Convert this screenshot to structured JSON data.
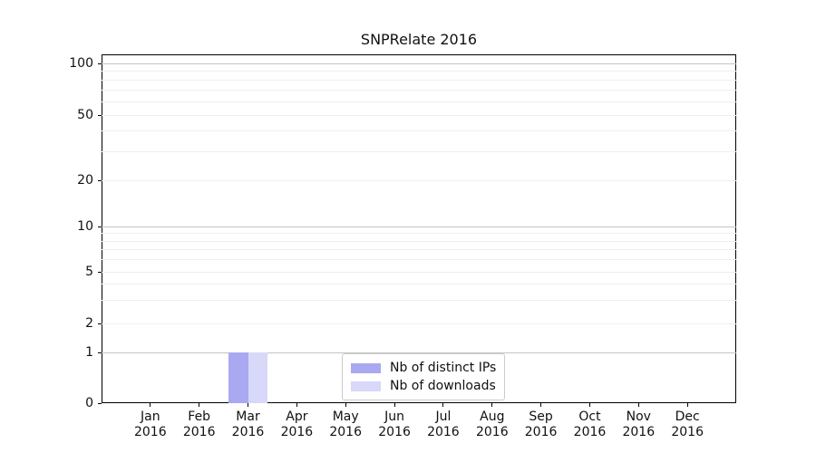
{
  "chart_data": {
    "type": "bar",
    "title": "SNPRelate 2016",
    "x_categories": [
      "Jan",
      "Feb",
      "Mar",
      "Apr",
      "May",
      "Jun",
      "Jul",
      "Aug",
      "Sep",
      "Oct",
      "Nov",
      "Dec"
    ],
    "x_year": "2016",
    "series": [
      {
        "name": "Nb of distinct IPs",
        "color": "#a9a9f1",
        "values": [
          0,
          0,
          1,
          0,
          0,
          0,
          0,
          0,
          0,
          0,
          0,
          0
        ]
      },
      {
        "name": "Nb of downloads",
        "color": "#d8d8f8",
        "values": [
          0,
          0,
          1,
          0,
          0,
          0,
          0,
          0,
          0,
          0,
          0,
          0
        ]
      }
    ],
    "y_ticks": [
      0,
      1,
      2,
      5,
      10,
      20,
      50,
      100
    ],
    "y_major_gridlines": [
      1,
      10,
      100
    ],
    "y_minor_gridlines": [
      2,
      3,
      4,
      5,
      6,
      7,
      8,
      9,
      20,
      30,
      40,
      50,
      60,
      70,
      80,
      90
    ],
    "y_scale_anchors": [
      {
        "v": 0,
        "f": 0.0
      },
      {
        "v": 1,
        "f": 0.1455
      },
      {
        "v": 2,
        "f": 0.2286
      },
      {
        "v": 5,
        "f": 0.3766
      },
      {
        "v": 10,
        "f": 0.5065
      },
      {
        "v": 20,
        "f": 0.639
      },
      {
        "v": 50,
        "f": 0.826
      },
      {
        "v": 100,
        "f": 0.974
      }
    ],
    "x_slots": 13,
    "bar_width_units": 0.4,
    "grid": "horizontal",
    "legend_position": "inside-bottom-center"
  },
  "colors": {
    "background": "#ffffff",
    "axis": "#000000",
    "grid_major": "#c4c4c4",
    "grid_minor": "#efefef",
    "text": "#111111",
    "legend_border": "#cccccc"
  },
  "legend": {
    "items": [
      "Nb of distinct IPs",
      "Nb of downloads"
    ]
  }
}
